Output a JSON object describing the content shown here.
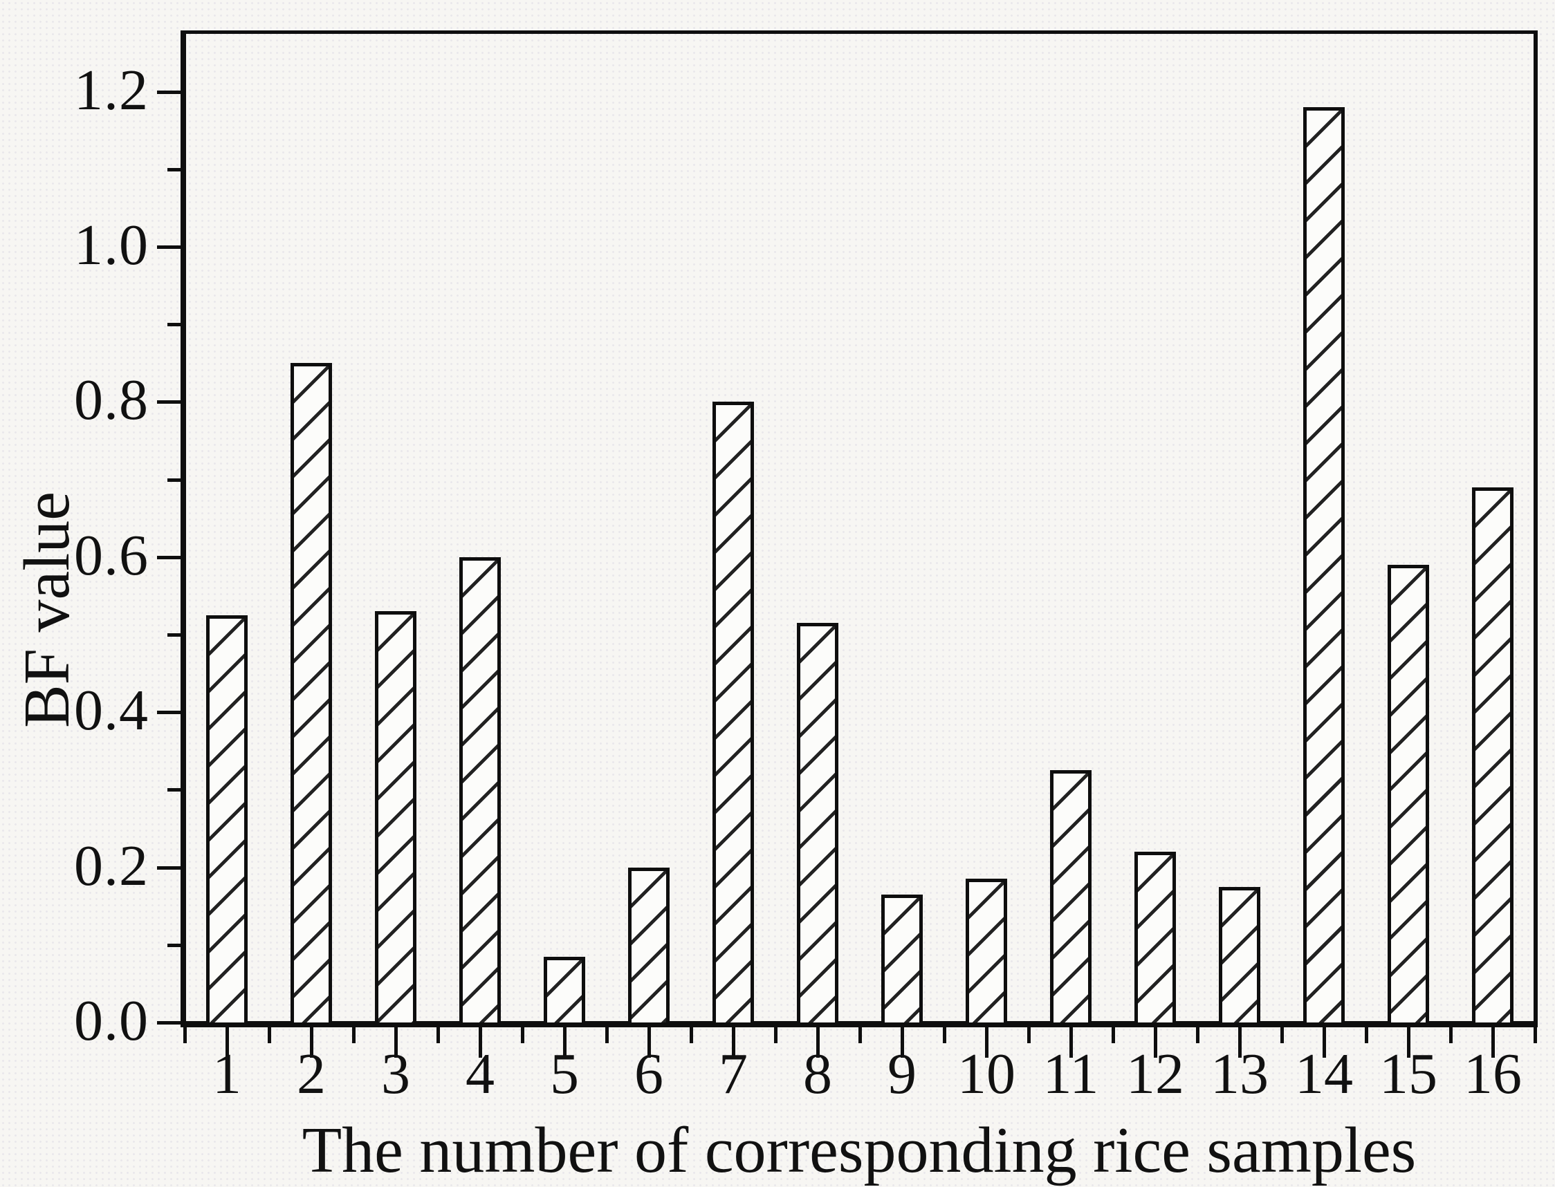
{
  "chart_data": {
    "type": "bar",
    "title": "",
    "xlabel": "The number of corresponding rice samples",
    "ylabel": "BF value",
    "categories": [
      "1",
      "2",
      "3",
      "4",
      "5",
      "6",
      "7",
      "8",
      "9",
      "10",
      "11",
      "12",
      "13",
      "14",
      "15",
      "16"
    ],
    "values": [
      0.525,
      0.85,
      0.53,
      0.6,
      0.085,
      0.2,
      0.8,
      0.515,
      0.165,
      0.185,
      0.325,
      0.22,
      0.175,
      1.18,
      0.59,
      0.69
    ],
    "ylim": [
      0.0,
      1.28
    ],
    "y_major_tick_values": [
      0.0,
      0.2,
      0.4,
      0.6,
      0.8,
      1.0,
      1.2
    ],
    "y_tick_labels": [
      "0.0",
      "0.2",
      "0.4",
      "0.6",
      "0.8",
      "1.0",
      "1.2"
    ],
    "y_minor_tick_values": [
      0.1,
      0.3,
      0.5,
      0.7,
      0.9,
      1.1
    ],
    "x_minor_ticks_at_midpoints": true,
    "grid": "off",
    "legend": "none",
    "bar_style": {
      "fill": "#fcfcfa",
      "hatch": "diagonal-forward-slash",
      "hatch_color": "#222222",
      "outline_color": "#0e0e0e"
    },
    "frame_color": "#0e0e0e",
    "background_color": "#f7f6f3",
    "text_color": "#111111"
  }
}
